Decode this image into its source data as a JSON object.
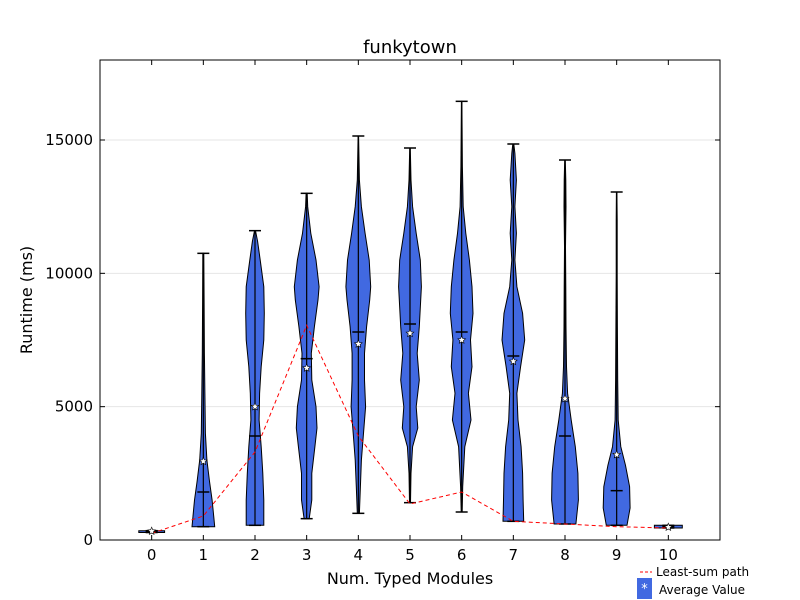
{
  "chart_data": {
    "type": "violin",
    "title": "funkytown",
    "xlabel": "Num. Typed Modules",
    "ylabel": "Runtime (ms)",
    "xlim": [
      -1,
      11
    ],
    "ylim": [
      0,
      18000
    ],
    "xticks": [
      0,
      1,
      2,
      3,
      4,
      5,
      6,
      7,
      8,
      9,
      10
    ],
    "xtick_labels": [
      "0",
      "1",
      "2",
      "3",
      "4",
      "5",
      "6",
      "7",
      "8",
      "9",
      "10"
    ],
    "yticks": [
      0,
      5000,
      10000,
      15000
    ],
    "ytick_labels": [
      "0",
      "5000",
      "10000",
      "15000"
    ],
    "grid": "horizontal-light",
    "violin_color": "#4169e1",
    "violins": [
      {
        "x": 0,
        "min": 280,
        "max": 350,
        "median": 320,
        "mean": 330,
        "width": 0.25,
        "profile": [
          [
            280,
            0.25
          ],
          [
            350,
            0.25
          ]
        ]
      },
      {
        "x": 1,
        "min": 500,
        "max": 10750,
        "median": 1800,
        "mean": 2950,
        "width": 0.22,
        "profile": [
          [
            500,
            0.22
          ],
          [
            900,
            0.2
          ],
          [
            1500,
            0.17
          ],
          [
            2200,
            0.12
          ],
          [
            3000,
            0.07
          ],
          [
            4000,
            0.04
          ],
          [
            5500,
            0.03
          ],
          [
            7000,
            0.02
          ],
          [
            9000,
            0.015
          ],
          [
            10750,
            0.01
          ]
        ]
      },
      {
        "x": 2,
        "min": 550,
        "max": 11600,
        "median": 3900,
        "mean": 5000,
        "width": 0.18,
        "profile": [
          [
            550,
            0.17
          ],
          [
            1500,
            0.17
          ],
          [
            2500,
            0.15
          ],
          [
            3500,
            0.12
          ],
          [
            4500,
            0.08
          ],
          [
            5500,
            0.09
          ],
          [
            6500,
            0.12
          ],
          [
            7500,
            0.17
          ],
          [
            8500,
            0.18
          ],
          [
            9500,
            0.17
          ],
          [
            10500,
            0.1
          ],
          [
            11200,
            0.05
          ],
          [
            11600,
            0.01
          ]
        ]
      },
      {
        "x": 3,
        "min": 800,
        "max": 13000,
        "median": 6800,
        "mean": 6450,
        "width": 0.25,
        "profile": [
          [
            800,
            0.05
          ],
          [
            1500,
            0.1
          ],
          [
            2500,
            0.1
          ],
          [
            3500,
            0.16
          ],
          [
            4200,
            0.2
          ],
          [
            5000,
            0.18
          ],
          [
            6000,
            0.1
          ],
          [
            7000,
            0.09
          ],
          [
            8000,
            0.15
          ],
          [
            9000,
            0.22
          ],
          [
            9500,
            0.24
          ],
          [
            10500,
            0.18
          ],
          [
            11500,
            0.08
          ],
          [
            12500,
            0.02
          ],
          [
            13000,
            0.01
          ]
        ]
      },
      {
        "x": 4,
        "min": 1000,
        "max": 15150,
        "median": 7800,
        "mean": 7350,
        "width": 0.25,
        "profile": [
          [
            1000,
            0.02
          ],
          [
            2000,
            0.04
          ],
          [
            3000,
            0.06
          ],
          [
            4000,
            0.1
          ],
          [
            5000,
            0.14
          ],
          [
            6000,
            0.12
          ],
          [
            7000,
            0.12
          ],
          [
            8000,
            0.16
          ],
          [
            9000,
            0.22
          ],
          [
            9500,
            0.24
          ],
          [
            10500,
            0.21
          ],
          [
            11500,
            0.13
          ],
          [
            12500,
            0.06
          ],
          [
            13500,
            0.02
          ],
          [
            15150,
            0.005
          ]
        ]
      },
      {
        "x": 5,
        "min": 1400,
        "max": 14700,
        "median": 8100,
        "mean": 7750,
        "width": 0.23,
        "profile": [
          [
            1400,
            0.01
          ],
          [
            2500,
            0.02
          ],
          [
            3500,
            0.05
          ],
          [
            4200,
            0.15
          ],
          [
            5000,
            0.12
          ],
          [
            6000,
            0.18
          ],
          [
            7000,
            0.14
          ],
          [
            8000,
            0.18
          ],
          [
            9500,
            0.22
          ],
          [
            10500,
            0.2
          ],
          [
            11500,
            0.12
          ],
          [
            12500,
            0.05
          ],
          [
            13500,
            0.02
          ],
          [
            14700,
            0.005
          ]
        ]
      },
      {
        "x": 6,
        "min": 1050,
        "max": 16450,
        "median": 7800,
        "mean": 7500,
        "width": 0.24,
        "profile": [
          [
            1050,
            0.01
          ],
          [
            2000,
            0.02
          ],
          [
            3500,
            0.06
          ],
          [
            4500,
            0.18
          ],
          [
            5500,
            0.13
          ],
          [
            6500,
            0.2
          ],
          [
            7500,
            0.17
          ],
          [
            8500,
            0.22
          ],
          [
            9500,
            0.2
          ],
          [
            10500,
            0.15
          ],
          [
            11500,
            0.08
          ],
          [
            12500,
            0.03
          ],
          [
            14000,
            0.015
          ],
          [
            16450,
            0.005
          ]
        ]
      },
      {
        "x": 7,
        "min": 700,
        "max": 14850,
        "median": 6900,
        "mean": 6700,
        "width": 0.23,
        "profile": [
          [
            700,
            0.2
          ],
          [
            1500,
            0.19
          ],
          [
            2500,
            0.18
          ],
          [
            3500,
            0.15
          ],
          [
            4500,
            0.09
          ],
          [
            5500,
            0.07
          ],
          [
            6500,
            0.14
          ],
          [
            7500,
            0.22
          ],
          [
            8500,
            0.18
          ],
          [
            9500,
            0.07
          ],
          [
            10500,
            0.03
          ],
          [
            11500,
            0.06
          ],
          [
            12500,
            0.03
          ],
          [
            13500,
            0.06
          ],
          [
            14500,
            0.03
          ],
          [
            14850,
            0.01
          ]
        ]
      },
      {
        "x": 8,
        "min": 600,
        "max": 14250,
        "median": 3900,
        "mean": 5300,
        "width": 0.26,
        "profile": [
          [
            600,
            0.21
          ],
          [
            1500,
            0.26
          ],
          [
            2500,
            0.25
          ],
          [
            3500,
            0.2
          ],
          [
            4500,
            0.12
          ],
          [
            5500,
            0.05
          ],
          [
            6500,
            0.03
          ],
          [
            8000,
            0.02
          ],
          [
            9500,
            0.015
          ],
          [
            11000,
            0.01
          ],
          [
            12500,
            0.02
          ],
          [
            13500,
            0.015
          ],
          [
            14250,
            0.005
          ]
        ]
      },
      {
        "x": 9,
        "min": 550,
        "max": 13050,
        "median": 1850,
        "mean": 3200,
        "width": 0.26,
        "profile": [
          [
            550,
            0.2
          ],
          [
            1200,
            0.26
          ],
          [
            2000,
            0.25
          ],
          [
            2800,
            0.17
          ],
          [
            3500,
            0.08
          ],
          [
            4500,
            0.03
          ],
          [
            6000,
            0.02
          ],
          [
            8000,
            0.015
          ],
          [
            10000,
            0.01
          ],
          [
            12000,
            0.01
          ],
          [
            13050,
            0.005
          ]
        ]
      },
      {
        "x": 10,
        "min": 450,
        "max": 550,
        "median": 500,
        "mean": 480,
        "width": 0.27,
        "profile": [
          [
            450,
            0.27
          ],
          [
            550,
            0.27
          ]
        ]
      }
    ],
    "least_sum_path": {
      "name": "Least-sum path",
      "color": "#ff0000",
      "x": [
        0,
        1,
        2,
        3,
        4,
        5,
        6,
        7,
        8,
        9,
        10
      ],
      "y": [
        250,
        900,
        3300,
        8050,
        3900,
        1350,
        1800,
        700,
        600,
        500,
        450
      ]
    },
    "legend": {
      "placement": "below-right",
      "entries": [
        {
          "label": "Least-sum path",
          "kind": "dashed-line"
        },
        {
          "label": "Average Value",
          "kind": "star-marker"
        }
      ]
    }
  }
}
